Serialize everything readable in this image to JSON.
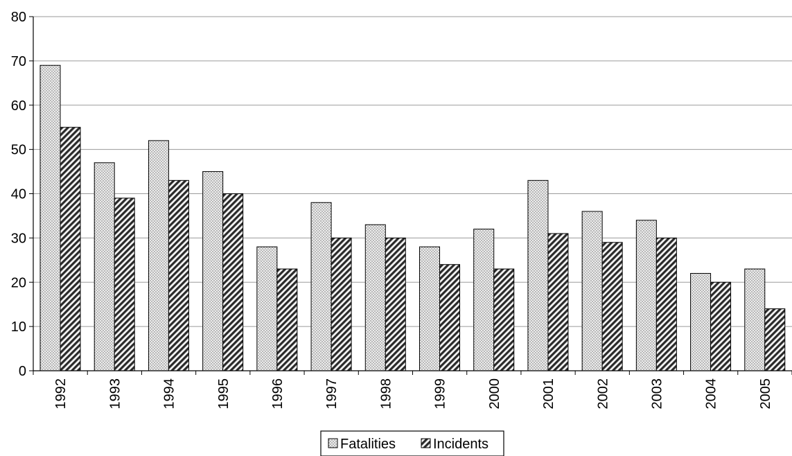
{
  "chart_data": {
    "type": "bar",
    "categories": [
      "1992",
      "1993",
      "1994",
      "1995",
      "1996",
      "1997",
      "1998",
      "1999",
      "2000",
      "2001",
      "2002",
      "2003",
      "2004",
      "2005"
    ],
    "series": [
      {
        "name": "Fatalities",
        "values": [
          69,
          47,
          52,
          45,
          28,
          38,
          33,
          28,
          32,
          43,
          36,
          34,
          22,
          23
        ]
      },
      {
        "name": "Incidents",
        "values": [
          55,
          39,
          43,
          40,
          23,
          30,
          30,
          24,
          23,
          31,
          29,
          30,
          20,
          14
        ]
      }
    ],
    "yticks": [
      "0",
      "10",
      "20",
      "30",
      "40",
      "50",
      "60",
      "70",
      "80"
    ],
    "ylim": [
      0,
      80
    ],
    "grid": true,
    "legend_position": "bottom",
    "title": "",
    "xlabel": "",
    "ylabel": ""
  }
}
